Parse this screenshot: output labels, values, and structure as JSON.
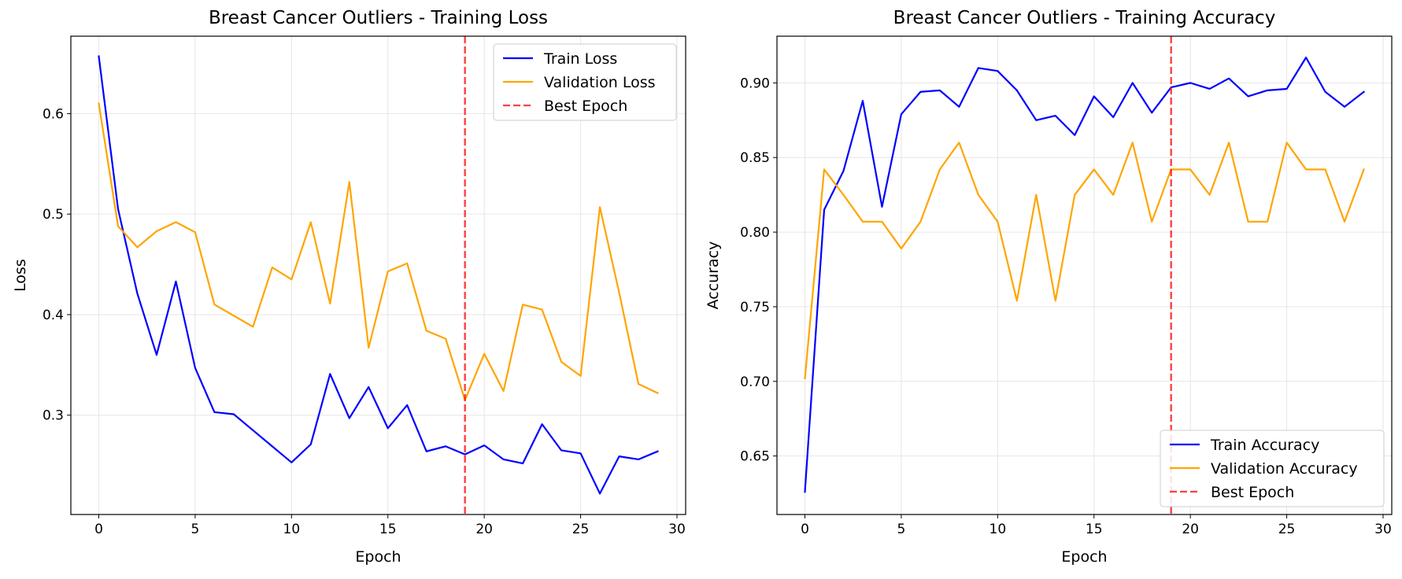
{
  "colors": {
    "train": "#0000ff",
    "validation": "#ffa500",
    "best_epoch": "#ff0000",
    "grid": "#e6e6e6",
    "axes": "#000000",
    "legend_border": "#cccccc"
  },
  "chart_data": [
    {
      "type": "line",
      "title": "Breast Cancer Outliers - Training Loss",
      "xlabel": "Epoch",
      "ylabel": "Loss",
      "xlim": [
        -1.45,
        30.45
      ],
      "ylim": [
        0.2012,
        0.677
      ],
      "xticks": [
        0,
        5,
        10,
        15,
        20,
        25,
        30
      ],
      "xtick_labels": [
        "0",
        "5",
        "10",
        "15",
        "20",
        "25",
        "30"
      ],
      "yticks": [
        0.3,
        0.4,
        0.5,
        0.6
      ],
      "ytick_labels": [
        "0.3",
        "0.4",
        "0.5",
        "0.6"
      ],
      "grid": true,
      "legend_position": "upper right",
      "best_epoch": 19,
      "x": [
        0,
        1,
        2,
        3,
        4,
        5,
        6,
        7,
        8,
        9,
        10,
        11,
        12,
        13,
        14,
        15,
        16,
        17,
        18,
        19,
        20,
        21,
        22,
        23,
        24,
        25,
        26,
        27,
        28,
        29
      ],
      "series": [
        {
          "name": "Train Loss",
          "color_key": "train",
          "values": [
            0.657,
            0.505,
            0.421,
            0.36,
            0.433,
            0.347,
            0.303,
            0.301,
            0.285,
            0.269,
            0.253,
            0.271,
            0.341,
            0.297,
            0.328,
            0.287,
            0.31,
            0.264,
            0.269,
            0.261,
            0.27,
            0.256,
            0.252,
            0.291,
            0.265,
            0.262,
            0.222,
            0.259,
            0.256,
            0.264
          ]
        },
        {
          "name": "Validation Loss",
          "color_key": "validation",
          "values": [
            0.61,
            0.488,
            0.467,
            0.483,
            0.492,
            0.482,
            0.41,
            0.399,
            0.388,
            0.447,
            0.435,
            0.492,
            0.411,
            0.532,
            0.367,
            0.443,
            0.451,
            0.384,
            0.376,
            0.315,
            0.361,
            0.324,
            0.41,
            0.405,
            0.353,
            0.339,
            0.507,
            0.422,
            0.331,
            0.322
          ]
        }
      ],
      "best_epoch_label": "Best Epoch"
    },
    {
      "type": "line",
      "title": "Breast Cancer Outliers - Training Accuracy",
      "xlabel": "Epoch",
      "ylabel": "Accuracy",
      "xlim": [
        -1.45,
        30.45
      ],
      "ylim": [
        0.6108,
        0.9313
      ],
      "xticks": [
        0,
        5,
        10,
        15,
        20,
        25,
        30
      ],
      "xtick_labels": [
        "0",
        "5",
        "10",
        "15",
        "20",
        "25",
        "30"
      ],
      "yticks": [
        0.65,
        0.7,
        0.75,
        0.8,
        0.85,
        0.9
      ],
      "ytick_labels": [
        "0.65",
        "0.70",
        "0.75",
        "0.80",
        "0.85",
        "0.90"
      ],
      "grid": true,
      "legend_position": "lower right",
      "best_epoch": 19,
      "x": [
        0,
        1,
        2,
        3,
        4,
        5,
        6,
        7,
        8,
        9,
        10,
        11,
        12,
        13,
        14,
        15,
        16,
        17,
        18,
        19,
        20,
        21,
        22,
        23,
        24,
        25,
        26,
        27,
        28,
        29
      ],
      "series": [
        {
          "name": "Train Accuracy",
          "color_key": "train",
          "values": [
            0.626,
            0.815,
            0.841,
            0.888,
            0.817,
            0.879,
            0.894,
            0.895,
            0.884,
            0.91,
            0.908,
            0.895,
            0.875,
            0.878,
            0.865,
            0.891,
            0.877,
            0.9,
            0.88,
            0.897,
            0.9,
            0.896,
            0.903,
            0.891,
            0.895,
            0.896,
            0.917,
            0.894,
            0.884,
            0.894
          ]
        },
        {
          "name": "Validation Accuracy",
          "color_key": "validation",
          "values": [
            0.702,
            0.842,
            0.825,
            0.807,
            0.807,
            0.789,
            0.807,
            0.842,
            0.86,
            0.825,
            0.807,
            0.754,
            0.825,
            0.754,
            0.825,
            0.842,
            0.825,
            0.86,
            0.807,
            0.842,
            0.842,
            0.825,
            0.86,
            0.807,
            0.807,
            0.86,
            0.842,
            0.842,
            0.807,
            0.842
          ]
        }
      ],
      "best_epoch_label": "Best Epoch"
    }
  ]
}
